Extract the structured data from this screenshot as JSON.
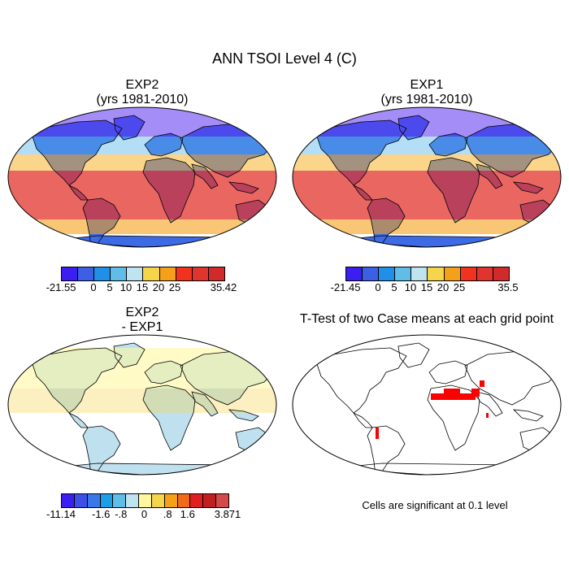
{
  "figure": {
    "title": "ANN TSOI Level 4 (C)"
  },
  "panels": [
    {
      "id": "exp2",
      "title_line1": "EXP2",
      "title_line2": "(yrs 1981-2010)"
    },
    {
      "id": "exp1",
      "title_line1": "EXP1",
      "title_line2": "(yrs 1981-2010)"
    },
    {
      "id": "diff",
      "title_line1": "EXP2",
      "title_line2": "- EXP1"
    },
    {
      "id": "ttest",
      "title_line1": "T-Test of two Case means at each grid point",
      "title_line2": ""
    }
  ],
  "colorbars": {
    "exp2": {
      "colors": [
        "#3a1ff0",
        "#3c5fe6",
        "#1f8fe8",
        "#5fbde8",
        "#bfe4f0",
        "#f5d54a",
        "#f5a019",
        "#f0321e",
        "#e0352e",
        "#d02a2a"
      ],
      "labels": [
        "-21.55",
        "0",
        "5",
        "10",
        "15",
        "20",
        "25",
        "35.42"
      ]
    },
    "exp1": {
      "colors": [
        "#3a1ff0",
        "#3c5fe6",
        "#1f8fe8",
        "#5fbde8",
        "#bfe4f0",
        "#f5d54a",
        "#f5a019",
        "#f0321e",
        "#e0352e",
        "#d02a2a"
      ],
      "labels": [
        "-21.45",
        "0",
        "5",
        "10",
        "15",
        "20",
        "25",
        "35.5"
      ]
    },
    "diff": {
      "colors": [
        "#3a1ff0",
        "#3c4fe6",
        "#3a78e8",
        "#1f9ee8",
        "#5fbde8",
        "#bfe4f0",
        "#fff6a0",
        "#f5d54a",
        "#f5a019",
        "#f06a1a",
        "#e0201e",
        "#c02020",
        "#d24a4a"
      ],
      "labels": [
        "-11.14",
        "-1.6",
        "-.8",
        "0",
        ".8",
        "1.6",
        "3.871"
      ]
    }
  },
  "ttest_note": "Cells are significant at 0.1 level"
}
